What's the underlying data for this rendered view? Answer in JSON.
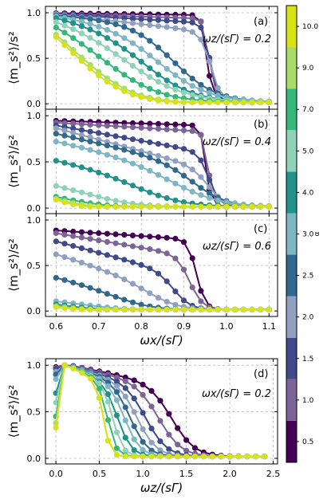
{
  "chart_data": {
    "type": "line",
    "shared_ylabel": "⟨m_s²⟩/s²",
    "colorbar": {
      "label": "α",
      "levels": [
        "0.5",
        "1.0",
        "1.5",
        "2.0",
        "2.5",
        "3.0",
        "4.0",
        "5.0",
        "7.0",
        "9.0",
        "10.0"
      ],
      "colors": [
        "#440154",
        "#7d6498",
        "#3e4a89",
        "#8fa0c0",
        "#31688e",
        "#7fb6c5",
        "#21918c",
        "#8fd1b9",
        "#35b779",
        "#a8dc6b",
        "#d8e219"
      ]
    },
    "panels": [
      {
        "label": "(a)",
        "annotation": "ωz/(sΓ) = 0.2",
        "xlabel": "ωx/(sΓ)",
        "xlim": [
          0.575,
          1.12
        ],
        "ylim": [
          -0.06,
          1.07
        ],
        "yticks": [
          "0.0",
          "0.5",
          "1.0"
        ],
        "xticks": [],
        "grid": true,
        "series_params": {
          "alpha": [
            "0.5",
            "1.0",
            "1.5",
            "2.0",
            "2.5",
            "3.0",
            "4.0",
            "5.0",
            "7.0",
            "9.0",
            "10.0"
          ],
          "plateau": [
            0.98,
            0.97,
            0.97,
            0.97,
            0.96,
            0.96,
            0.95,
            0.94,
            0.92,
            0.9,
            0.89
          ],
          "drop_x": [
            0.955,
            0.96,
            0.962,
            0.964,
            0.88,
            0.85,
            0.82,
            0.79,
            0.75,
            0.71,
            0.7
          ],
          "width": [
            0.006,
            0.006,
            0.008,
            0.012,
            0.05,
            0.06,
            0.06,
            0.07,
            0.07,
            0.07,
            0.07
          ],
          "decline": [
            0.02,
            0.05,
            0.1,
            0.2,
            0.1,
            0.15,
            0.2,
            0.2,
            0.25,
            0.3,
            0.3
          ]
        }
      },
      {
        "label": "(b)",
        "annotation": "ωz/(sΓ) = 0.4",
        "xlabel": "ωx/(sΓ)",
        "xlim": [
          0.575,
          1.12
        ],
        "ylim": [
          -0.06,
          1.07
        ],
        "yticks": [
          "0.0",
          "0.5",
          "1.0"
        ],
        "xticks": [],
        "grid": true,
        "series_params": {
          "alpha": [
            "0.5",
            "1.0",
            "1.5",
            "2.0",
            "2.5",
            "3.0",
            "4.0",
            "5.0",
            "7.0",
            "9.0",
            "10.0"
          ],
          "plateau": [
            0.93,
            0.91,
            0.88,
            0.85,
            0.79,
            0.71,
            0.51,
            0.25,
            0.14,
            0.13,
            0.12
          ],
          "drop_x": [
            0.952,
            0.958,
            0.96,
            0.962,
            0.935,
            0.9,
            0.82,
            0.73,
            0.67,
            0.64,
            0.63
          ],
          "width": [
            0.006,
            0.006,
            0.012,
            0.02,
            0.04,
            0.06,
            0.06,
            0.06,
            0.06,
            0.06,
            0.06
          ],
          "decline": [
            0.05,
            0.1,
            0.3,
            0.45,
            0.35,
            0.3,
            0.2,
            0.1,
            0.05,
            0.05,
            0.05
          ]
        }
      },
      {
        "label": "(c)",
        "annotation": "ωz/(sΓ) = 0.6",
        "xlabel": "ωx/(sΓ)",
        "xlim": [
          0.575,
          1.12
        ],
        "ylim": [
          -0.06,
          1.07
        ],
        "yticks": [
          "0.0",
          "0.5",
          "1.0"
        ],
        "xticks": [
          "0.6",
          "0.7",
          "0.8",
          "0.9",
          "1.0",
          "1.1"
        ],
        "grid": true,
        "series_params": {
          "alpha": [
            "0.5",
            "1.0",
            "1.5",
            "2.0",
            "2.5",
            "3.0",
            "4.0",
            "5.0",
            "7.0",
            "9.0",
            "10.0"
          ],
          "plateau": [
            0.87,
            0.84,
            0.75,
            0.61,
            0.36,
            0.1,
            0.07,
            0.05,
            0.04,
            0.04,
            0.04
          ],
          "drop_x": [
            0.93,
            0.915,
            0.88,
            0.84,
            0.78,
            0.72,
            0.68,
            0.66,
            0.65,
            0.64,
            0.64
          ],
          "width": [
            0.01,
            0.015,
            0.02,
            0.04,
            0.05,
            0.05,
            0.05,
            0.05,
            0.05,
            0.05,
            0.05
          ],
          "decline": [
            0.1,
            0.25,
            0.35,
            0.35,
            0.2,
            0.05,
            0.04,
            0.03,
            0.02,
            0.02,
            0.02
          ]
        }
      },
      {
        "label": "(d)",
        "annotation": "ωx/(sΓ) = 0.2",
        "xlabel": "ωz/(sΓ)",
        "xlim": [
          -0.12,
          2.55
        ],
        "ylim": [
          -0.06,
          1.07
        ],
        "yticks": [
          "0.0",
          "0.5",
          "1.0"
        ],
        "xticks": [
          "0.0",
          "0.5",
          "1.0",
          "1.5",
          "2.0",
          "2.5"
        ],
        "grid": true,
        "series_params": {
          "alpha": [
            "0.5",
            "1.0",
            "1.5",
            "2.0",
            "2.5",
            "3.0",
            "4.0",
            "5.0",
            "7.0",
            "9.0",
            "10.0"
          ],
          "y0": [
            0.98,
            0.97,
            0.96,
            0.93,
            0.9,
            0.85,
            0.7,
            0.6,
            0.45,
            0.38,
            0.33
          ],
          "drop_x": [
            1.35,
            1.2,
            1.05,
            0.95,
            0.87,
            0.8,
            0.72,
            0.66,
            0.6,
            0.55,
            0.55
          ],
          "width": [
            0.13,
            0.13,
            0.12,
            0.11,
            0.1,
            0.09,
            0.08,
            0.06,
            0.05,
            0.04,
            0.04
          ]
        }
      }
    ]
  }
}
